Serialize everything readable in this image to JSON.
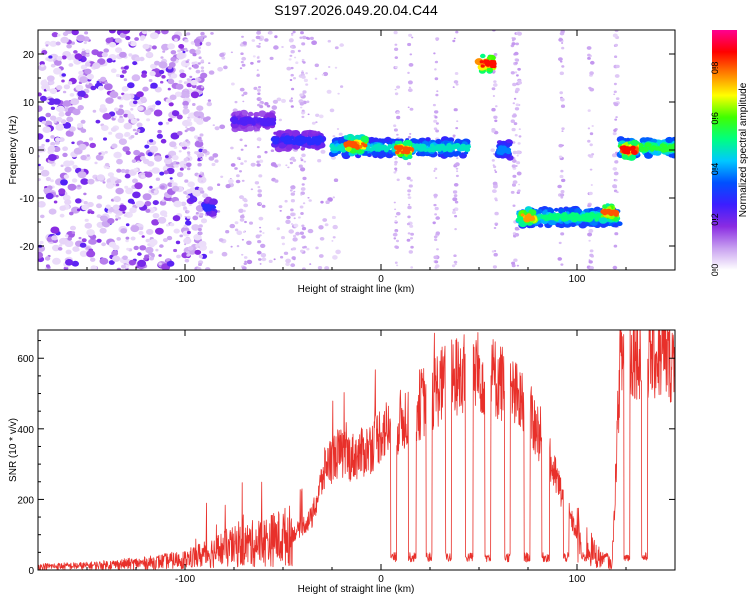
{
  "title": "S197.2026.049.20.04.C44",
  "chart_data": [
    {
      "type": "heatmap",
      "name": "spectrogram",
      "xlabel": "Height of straight line (km)",
      "ylabel": "Frequency (Hz)",
      "xlim": [
        -175,
        150
      ],
      "ylim": [
        -25,
        25
      ],
      "xticks": [
        -100,
        0,
        100
      ],
      "yticks": [
        -20,
        -10,
        0,
        10,
        20
      ],
      "colorbar": {
        "label": "Normalized spectral amplitude",
        "range": [
          0,
          0.95
        ],
        "ticks": [
          0.0,
          0.2,
          0.4,
          0.6,
          0.8
        ],
        "tick_labels": [
          "0.0",
          "0.2",
          "0.4",
          "0.6",
          "0.8"
        ],
        "colors": [
          "#ffffff",
          "#c8a0f0",
          "#8a2be2",
          "#3c1eff",
          "#0050ff",
          "#00c8ff",
          "#00ff80",
          "#40ff00",
          "#ffff00",
          "#ff8000",
          "#ff0000",
          "#ff0090"
        ]
      },
      "segments": [
        {
          "x": [
            -90,
            -85
          ],
          "f": -12,
          "amp": 0.3
        },
        {
          "x": [
            -75,
            -55
          ],
          "f": 6,
          "amp": 0.25
        },
        {
          "x": [
            -55,
            -30
          ],
          "f": 2,
          "amp": 0.3
        },
        {
          "x": [
            -25,
            45
          ],
          "f": 0.5,
          "amp": 0.5
        },
        {
          "x": [
            -18,
            -8
          ],
          "f": 1,
          "amp": 0.85
        },
        {
          "x": [
            8,
            15
          ],
          "f": 0,
          "amp": 0.85
        },
        {
          "x": [
            50,
            58
          ],
          "f": 18,
          "amp": 0.9
        },
        {
          "x": [
            60,
            66
          ],
          "f": 0,
          "amp": 0.4
        },
        {
          "x": [
            70,
            122
          ],
          "f": -14,
          "amp": 0.55
        },
        {
          "x": [
            72,
            78
          ],
          "f": -14,
          "amp": 0.8
        },
        {
          "x": [
            113,
            120
          ],
          "f": -13,
          "amp": 0.85
        },
        {
          "x": [
            122,
            150
          ],
          "f": 0.5,
          "amp": 0.6
        },
        {
          "x": [
            123,
            130
          ],
          "f": 0,
          "amp": 0.9
        }
      ]
    },
    {
      "type": "line",
      "name": "snr",
      "xlabel": "Height of straight line (km)",
      "ylabel": "SNR (10 * v/v)",
      "xlim": [
        -175,
        150
      ],
      "ylim": [
        0,
        680
      ],
      "xticks": [
        -100,
        0,
        100
      ],
      "yticks": [
        0,
        200,
        400,
        600
      ],
      "color": "#e8302a",
      "envelope": {
        "x": [
          -175,
          -150,
          -120,
          -100,
          -80,
          -60,
          -45,
          -35,
          -28,
          -22,
          -15,
          -10,
          -5,
          0,
          10,
          20,
          30,
          40,
          50,
          60,
          70,
          80,
          90,
          100,
          110,
          118,
          122,
          130,
          140,
          150
        ],
        "y": [
          10,
          12,
          20,
          30,
          60,
          80,
          100,
          150,
          300,
          330,
          320,
          330,
          350,
          390,
          420,
          470,
          520,
          550,
          560,
          540,
          480,
          400,
          250,
          100,
          40,
          15,
          600,
          620,
          610,
          600
        ]
      },
      "dropouts": [
        [
          5,
          8
        ],
        [
          14,
          18
        ],
        [
          23,
          26
        ],
        [
          33,
          36
        ],
        [
          43,
          47
        ],
        [
          53,
          56
        ],
        [
          63,
          66
        ],
        [
          73,
          76
        ],
        [
          82,
          86
        ],
        [
          93,
          96
        ],
        [
          102,
          105
        ],
        [
          113,
          116
        ],
        [
          124,
          127
        ],
        [
          133,
          136
        ]
      ],
      "dropout_level": 45
    }
  ]
}
